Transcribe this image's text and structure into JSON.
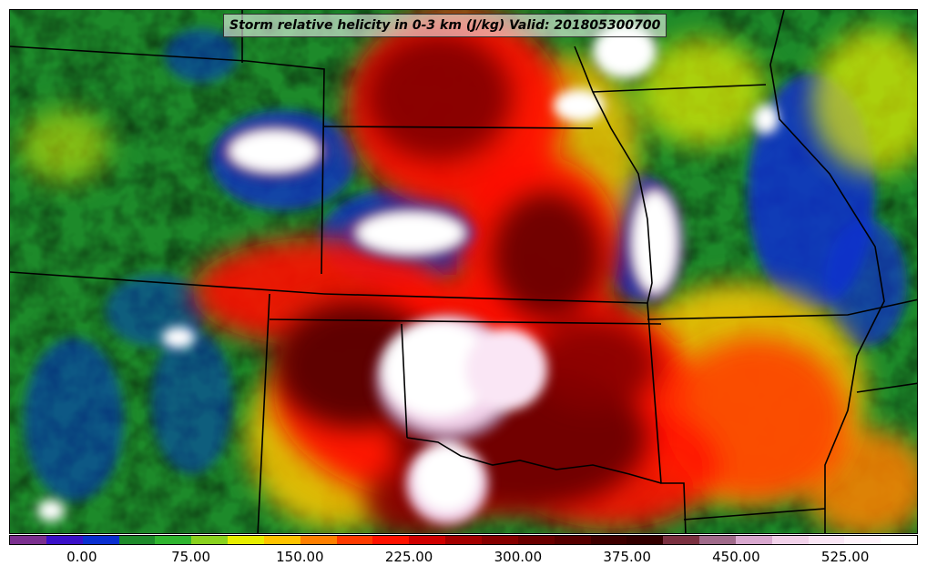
{
  "title": "Storm relative helicity in 0-3 km (J/kg) Valid: 201805300700",
  "colorbar": {
    "colors": [
      "#7b2f8f",
      "#3a10c8",
      "#0a2fd0",
      "#1d8a2a",
      "#2fb52f",
      "#8ad21e",
      "#e8ee00",
      "#ffc400",
      "#ff8000",
      "#ff3b00",
      "#ff1200",
      "#d00000",
      "#a30000",
      "#850000",
      "#6a0000",
      "#560000",
      "#3e0000",
      "#330000",
      "#7a3040",
      "#a06a8a",
      "#d9a8cf",
      "#f2d2ea",
      "#fae6f5",
      "#fff3fb",
      "#ffffff"
    ],
    "tick_labels": [
      "0.00",
      "75.00",
      "150.00",
      "225.00",
      "300.00",
      "375.00",
      "450.00",
      "525.00"
    ]
  },
  "map": {
    "field": "storm-relative-helicity-0-3km",
    "background_color": "#1a8f2a",
    "border_color": "#000000"
  }
}
